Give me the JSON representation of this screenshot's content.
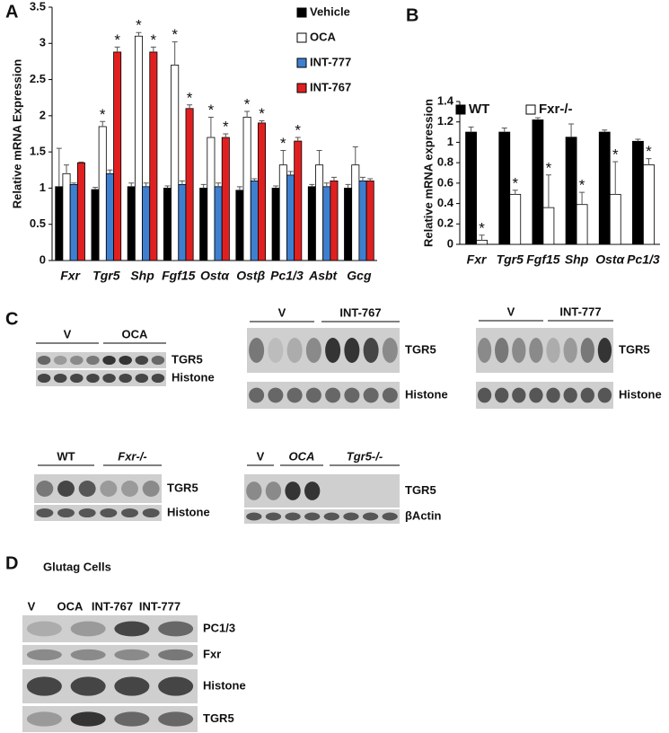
{
  "panel_labels": [
    "A",
    "B",
    "C",
    "D"
  ],
  "chart_data": [
    {
      "type": "bar",
      "y_label": "Relative mRNA Expression",
      "categories": [
        "Fxr",
        "Tgr5",
        "Shp",
        "Fgf15",
        "Ostα",
        "Ostβ",
        "Pc1/3",
        "Asbt",
        "Gcg"
      ],
      "series": [
        {
          "name": "Vehicle",
          "color": "#000000",
          "values": [
            1.02,
            0.98,
            1.02,
            1.0,
            1.0,
            0.97,
            1.0,
            1.02,
            1.0
          ],
          "errors": [
            0.53,
            0.03,
            0.05,
            0.03,
            0.05,
            0.05,
            0.03,
            0.03,
            0.05
          ]
        },
        {
          "name": "OCA",
          "color": "#ffffff",
          "values": [
            1.2,
            1.85,
            3.1,
            2.7,
            1.7,
            1.98,
            1.32,
            1.32,
            1.32
          ],
          "errors": [
            0.12,
            0.07,
            0.05,
            0.32,
            0.28,
            0.08,
            0.2,
            0.2,
            0.25
          ]
        },
        {
          "name": "INT-777",
          "color": "#3f7fd0",
          "values": [
            1.05,
            1.2,
            1.02,
            1.05,
            1.02,
            1.1,
            1.18,
            1.02,
            1.1
          ],
          "errors": [
            0.02,
            0.05,
            0.05,
            0.05,
            0.05,
            0.03,
            0.05,
            0.05,
            0.05
          ]
        },
        {
          "name": "INT-767",
          "color": "#e02020",
          "values": [
            1.35,
            2.88,
            2.88,
            2.1,
            1.7,
            1.9,
            1.65,
            1.1,
            1.1
          ],
          "errors": [
            0.01,
            0.07,
            0.07,
            0.05,
            0.05,
            0.03,
            0.05,
            0.05,
            0.03
          ]
        }
      ],
      "annotations": [
        {
          "text": "*",
          "series": 1,
          "category": 1
        },
        {
          "text": "*",
          "series": 3,
          "category": 1
        },
        {
          "text": "*",
          "series": 1,
          "category": 2
        },
        {
          "text": "*",
          "series": 3,
          "category": 2
        },
        {
          "text": "*",
          "series": 1,
          "category": 3
        },
        {
          "text": "*",
          "series": 3,
          "category": 3
        },
        {
          "text": "*",
          "series": 1,
          "category": 4
        },
        {
          "text": "*",
          "series": 3,
          "category": 4
        },
        {
          "text": "*",
          "series": 1,
          "category": 5
        },
        {
          "text": "*",
          "series": 3,
          "category": 5
        },
        {
          "text": "*",
          "series": 1,
          "category": 6
        },
        {
          "text": "*",
          "series": 3,
          "category": 6
        }
      ],
      "ylim": [
        0,
        3.5
      ],
      "yticks": [
        0,
        0.5,
        1,
        1.5,
        2,
        2.5,
        3,
        3.5
      ]
    },
    {
      "type": "bar",
      "y_label": "Relative mRNA expression",
      "categories": [
        "Fxr",
        "Tgr5",
        "Fgf15",
        "Shp",
        "Ostα",
        "Pc1/3"
      ],
      "series": [
        {
          "name": "WT",
          "color": "#000000",
          "values": [
            1.1,
            1.1,
            1.22,
            1.05,
            1.1,
            1.01
          ],
          "errors": [
            0.05,
            0.04,
            0.02,
            0.13,
            0.02,
            0.02
          ]
        },
        {
          "name": "Fxr-/-",
          "color": "#ffffff",
          "values": [
            0.04,
            0.49,
            0.36,
            0.39,
            0.49,
            0.78
          ],
          "errors": [
            0.05,
            0.04,
            0.32,
            0.12,
            0.32,
            0.06
          ]
        }
      ],
      "annotations": [
        {
          "text": "*",
          "series": 1,
          "category": 0
        },
        {
          "text": "*",
          "series": 1,
          "category": 1
        },
        {
          "text": "*",
          "series": 1,
          "category": 2
        },
        {
          "text": "*",
          "series": 1,
          "category": 3
        },
        {
          "text": "*",
          "series": 1,
          "category": 4
        },
        {
          "text": "*",
          "series": 1,
          "category": 5
        }
      ],
      "ylim": [
        0,
        1.4
      ],
      "yticks": [
        0,
        0.2,
        0.4,
        0.6,
        0.8,
        1,
        1.2,
        1.4
      ]
    }
  ],
  "blots": [
    {
      "groups": [
        "V",
        "OCA"
      ],
      "bands": [
        "TGR5",
        "Histone"
      ]
    },
    {
      "groups": [
        "V",
        "INT-767"
      ],
      "bands": [
        "TGR5",
        "Histone"
      ]
    },
    {
      "groups": [
        "V",
        "INT-777"
      ],
      "bands": [
        "TGR5",
        "Histone"
      ]
    },
    {
      "groups": [
        "WT",
        "Fxr-/-"
      ],
      "bands": [
        "TGR5",
        "Histone"
      ]
    },
    {
      "groups": [
        "V",
        "OCA",
        "Tgr5-/-"
      ],
      "bands": [
        "TGR5",
        "βActin"
      ]
    }
  ],
  "glutag": {
    "title": "Glutag Cells",
    "lanes": [
      "V",
      "OCA",
      "INT-767",
      "INT-777"
    ],
    "bands": [
      "PC1/3",
      "Fxr",
      "Histone",
      "TGR5"
    ]
  }
}
